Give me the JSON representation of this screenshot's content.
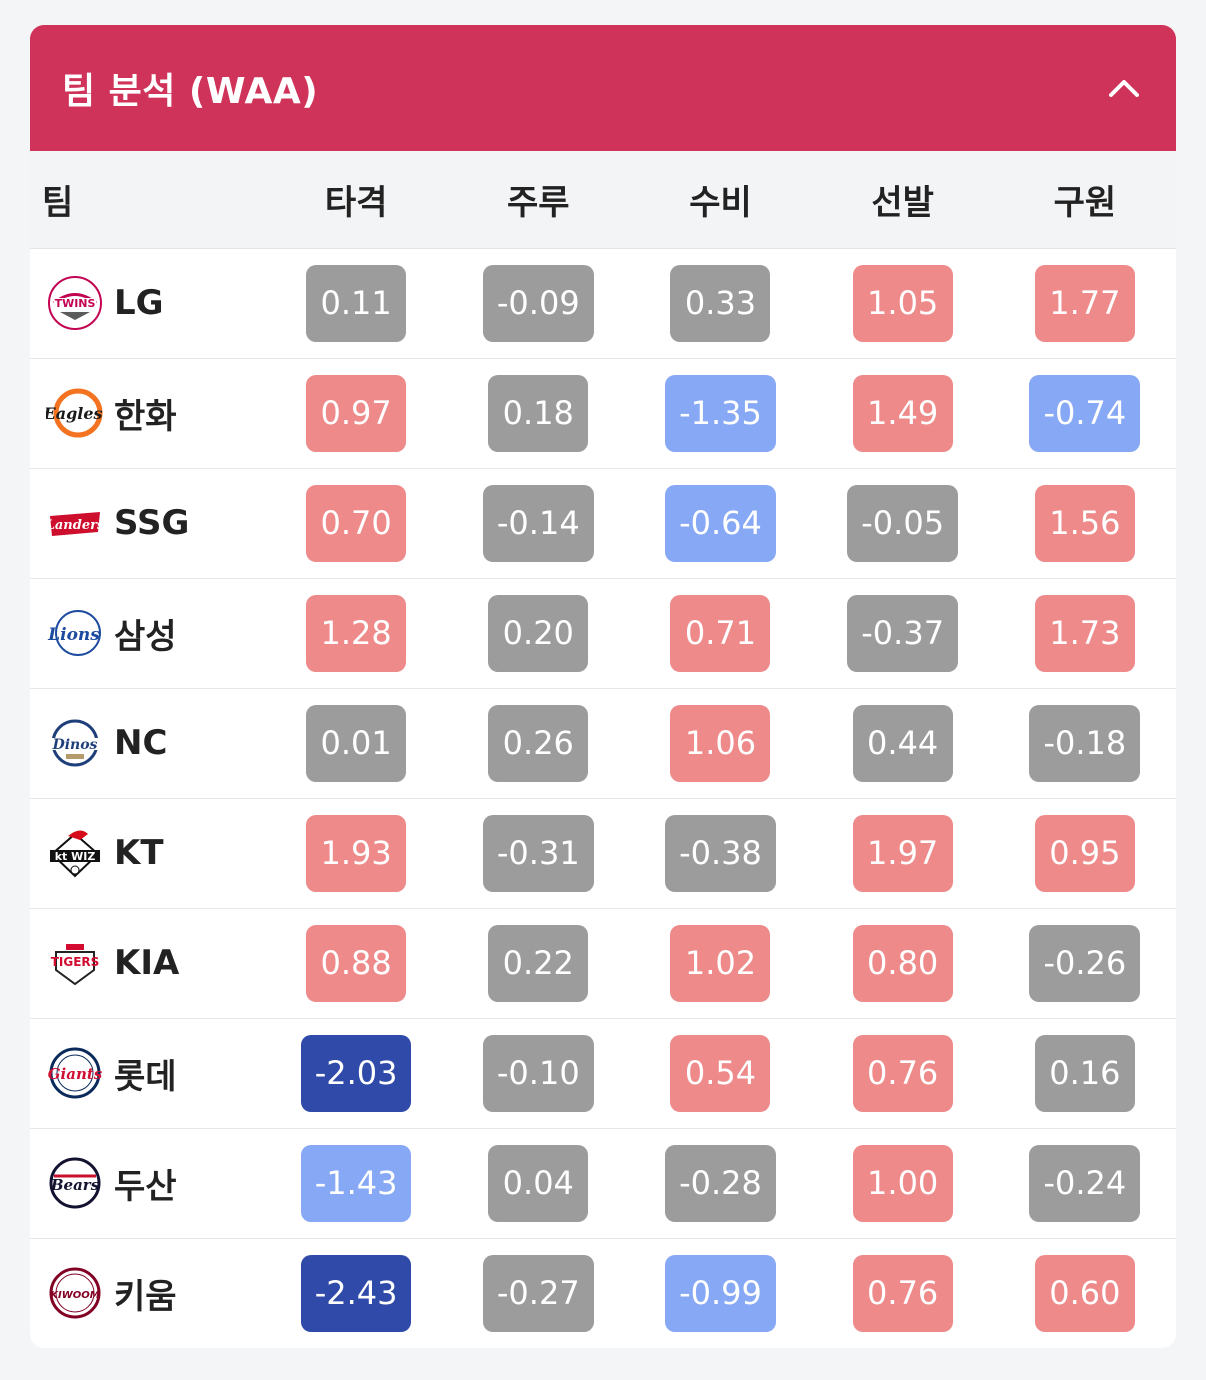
{
  "card": {
    "title": "팀 분석 (WAA)"
  },
  "columns": [
    "팀",
    "타격",
    "주루",
    "수비",
    "선발",
    "구원"
  ],
  "rows": [
    {
      "team": "LG",
      "logo": "lg-twins-logo",
      "values": [
        "0.11",
        "-0.09",
        "0.33",
        "1.05",
        "1.77"
      ],
      "levels": [
        "neutral",
        "neutral",
        "neutral",
        "pos",
        "pos"
      ]
    },
    {
      "team": "한화",
      "logo": "hanwha-eagles-logo",
      "values": [
        "0.97",
        "0.18",
        "-1.35",
        "1.49",
        "-0.74"
      ],
      "levels": [
        "pos",
        "neutral",
        "neg1",
        "pos",
        "neg1"
      ]
    },
    {
      "team": "SSG",
      "logo": "ssg-landers-logo",
      "values": [
        "0.70",
        "-0.14",
        "-0.64",
        "-0.05",
        "1.56"
      ],
      "levels": [
        "pos",
        "neutral",
        "neg1",
        "neutral",
        "pos"
      ]
    },
    {
      "team": "삼성",
      "logo": "samsung-lions-logo",
      "values": [
        "1.28",
        "0.20",
        "0.71",
        "-0.37",
        "1.73"
      ],
      "levels": [
        "pos",
        "neutral",
        "pos",
        "neutral",
        "pos"
      ]
    },
    {
      "team": "NC",
      "logo": "nc-dinos-logo",
      "values": [
        "0.01",
        "0.26",
        "1.06",
        "0.44",
        "-0.18"
      ],
      "levels": [
        "neutral",
        "neutral",
        "pos",
        "neutral",
        "neutral"
      ]
    },
    {
      "team": "KT",
      "logo": "kt-wiz-logo",
      "values": [
        "1.93",
        "-0.31",
        "-0.38",
        "1.97",
        "0.95"
      ],
      "levels": [
        "pos",
        "neutral",
        "neutral",
        "pos",
        "pos"
      ]
    },
    {
      "team": "KIA",
      "logo": "kia-tigers-logo",
      "values": [
        "0.88",
        "0.22",
        "1.02",
        "0.80",
        "-0.26"
      ],
      "levels": [
        "pos",
        "neutral",
        "pos",
        "pos",
        "neutral"
      ]
    },
    {
      "team": "롯데",
      "logo": "lotte-giants-logo",
      "values": [
        "-2.03",
        "-0.10",
        "0.54",
        "0.76",
        "0.16"
      ],
      "levels": [
        "neg2",
        "neutral",
        "pos",
        "pos",
        "neutral"
      ]
    },
    {
      "team": "두산",
      "logo": "doosan-bears-logo",
      "values": [
        "-1.43",
        "0.04",
        "-0.28",
        "1.00",
        "-0.24"
      ],
      "levels": [
        "neg1",
        "neutral",
        "neutral",
        "pos",
        "neutral"
      ]
    },
    {
      "team": "키움",
      "logo": "kiwoom-heroes-logo",
      "values": [
        "-2.43",
        "-0.27",
        "-0.99",
        "0.76",
        "0.60"
      ],
      "levels": [
        "neg2",
        "neutral",
        "neg1",
        "pos",
        "pos"
      ]
    }
  ],
  "colors": {
    "header_bg": "#d0335a",
    "neutral": "#9c9c9c",
    "positive": "#ee8a8a",
    "negative_light": "#86a8f5",
    "negative_dark": "#2f4aa8"
  }
}
